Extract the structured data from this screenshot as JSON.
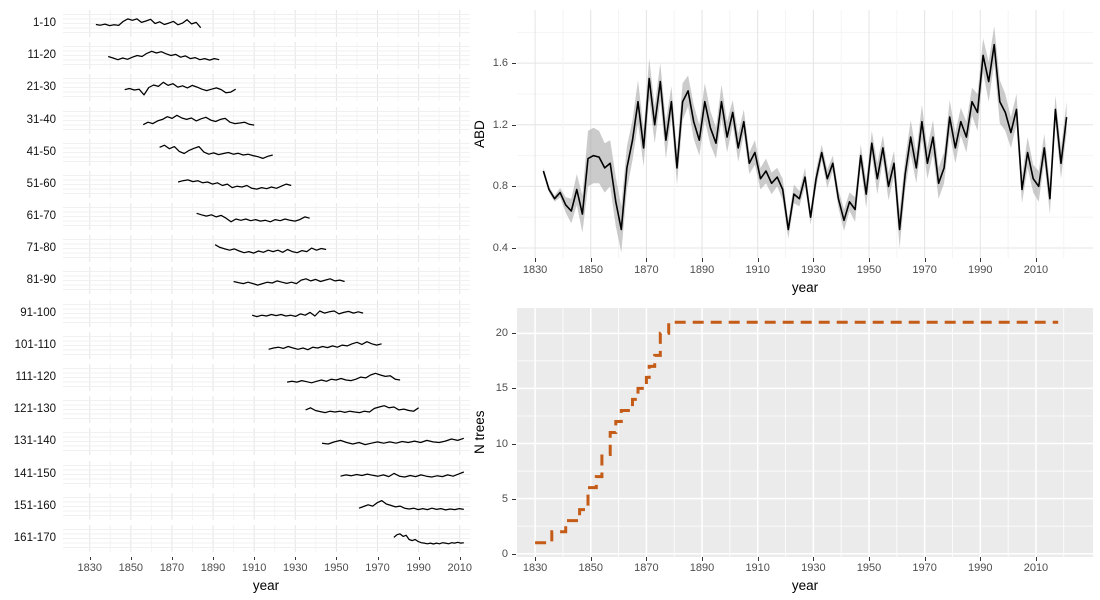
{
  "chart_data": [
    {
      "id": "age_class_facets",
      "type": "line",
      "xlabel": "year",
      "x_ticks": [
        1830,
        1850,
        1870,
        1890,
        1910,
        1930,
        1950,
        1970,
        1990,
        2010
      ],
      "x_domain": [
        1817,
        2015
      ],
      "line_color": "#000000",
      "facets": [
        {
          "label": "1-10",
          "start": 1833,
          "end": 1884,
          "values": [
            0.45,
            0.42,
            0.47,
            0.4,
            0.44,
            0.41,
            0.6,
            0.72,
            0.65,
            0.72,
            0.55,
            0.62,
            0.7,
            0.5,
            0.58,
            0.45,
            0.52,
            0.6,
            0.44,
            0.52,
            0.68,
            0.48,
            0.55,
            0.3
          ]
        },
        {
          "label": "11-20",
          "start": 1839,
          "end": 1893,
          "values": [
            0.45,
            0.38,
            0.3,
            0.38,
            0.32,
            0.42,
            0.5,
            0.45,
            0.6,
            0.7,
            0.62,
            0.68,
            0.58,
            0.5,
            0.55,
            0.42,
            0.48,
            0.35,
            0.4,
            0.3,
            0.35,
            0.28,
            0.35,
            0.3
          ]
        },
        {
          "label": "21-30",
          "start": 1847,
          "end": 1901,
          "values": [
            0.4,
            0.45,
            0.38,
            0.42,
            0.15,
            0.5,
            0.62,
            0.55,
            0.75,
            0.6,
            0.68,
            0.52,
            0.58,
            0.48,
            0.6,
            0.52,
            0.42,
            0.35,
            0.42,
            0.48,
            0.4,
            0.25,
            0.28,
            0.42
          ]
        },
        {
          "label": "31-40",
          "start": 1856,
          "end": 1910,
          "values": [
            0.3,
            0.42,
            0.35,
            0.48,
            0.55,
            0.68,
            0.6,
            0.75,
            0.62,
            0.55,
            0.62,
            0.48,
            0.58,
            0.65,
            0.52,
            0.45,
            0.55,
            0.6,
            0.42,
            0.35,
            0.38,
            0.42,
            0.32,
            0.28
          ]
        },
        {
          "label": "41-50",
          "start": 1864,
          "end": 1919,
          "values": [
            0.75,
            0.85,
            0.68,
            0.78,
            0.55,
            0.45,
            0.6,
            0.7,
            0.78,
            0.52,
            0.42,
            0.48,
            0.4,
            0.45,
            0.5,
            0.42,
            0.46,
            0.38,
            0.42,
            0.35,
            0.3,
            0.22,
            0.32,
            0.38
          ]
        },
        {
          "label": "51-60",
          "start": 1873,
          "end": 1928,
          "values": [
            0.62,
            0.68,
            0.72,
            0.64,
            0.68,
            0.58,
            0.62,
            0.52,
            0.58,
            0.45,
            0.52,
            0.35,
            0.42,
            0.38,
            0.45,
            0.32,
            0.28,
            0.35,
            0.3,
            0.38,
            0.32,
            0.42,
            0.52,
            0.45
          ]
        },
        {
          "label": "61-70",
          "start": 1882,
          "end": 1937,
          "values": [
            0.65,
            0.58,
            0.52,
            0.58,
            0.48,
            0.55,
            0.42,
            0.25,
            0.38,
            0.32,
            0.38,
            0.3,
            0.35,
            0.28,
            0.32,
            0.25,
            0.35,
            0.3,
            0.38,
            0.32,
            0.28,
            0.35,
            0.48,
            0.42
          ]
        },
        {
          "label": "71-80",
          "start": 1891,
          "end": 1945,
          "values": [
            0.68,
            0.55,
            0.48,
            0.42,
            0.48,
            0.38,
            0.3,
            0.35,
            0.28,
            0.38,
            0.32,
            0.42,
            0.35,
            0.42,
            0.32,
            0.45,
            0.35,
            0.3,
            0.4,
            0.35,
            0.52,
            0.42,
            0.5,
            0.45
          ]
        },
        {
          "label": "81-90",
          "start": 1900,
          "end": 1954,
          "values": [
            0.45,
            0.4,
            0.35,
            0.42,
            0.35,
            0.28,
            0.35,
            0.42,
            0.38,
            0.48,
            0.42,
            0.36,
            0.42,
            0.35,
            0.52,
            0.58,
            0.48,
            0.55,
            0.45,
            0.52,
            0.58,
            0.48,
            0.52,
            0.45
          ]
        },
        {
          "label": "91-100",
          "start": 1909,
          "end": 1963,
          "values": [
            0.42,
            0.35,
            0.42,
            0.38,
            0.45,
            0.4,
            0.45,
            0.38,
            0.42,
            0.36,
            0.48,
            0.42,
            0.55,
            0.38,
            0.62,
            0.52,
            0.58,
            0.62,
            0.48,
            0.55,
            0.6,
            0.52,
            0.58,
            0.52
          ]
        },
        {
          "label": "101-110",
          "start": 1917,
          "end": 1972,
          "values": [
            0.32,
            0.38,
            0.42,
            0.36,
            0.45,
            0.38,
            0.32,
            0.38,
            0.3,
            0.42,
            0.38,
            0.45,
            0.4,
            0.48,
            0.42,
            0.52,
            0.48,
            0.58,
            0.65,
            0.55,
            0.68,
            0.58,
            0.52,
            0.58
          ]
        },
        {
          "label": "111-120",
          "start": 1926,
          "end": 1981,
          "values": [
            0.28,
            0.32,
            0.28,
            0.35,
            0.3,
            0.25,
            0.32,
            0.38,
            0.32,
            0.42,
            0.38,
            0.45,
            0.38,
            0.35,
            0.42,
            0.52,
            0.48,
            0.62,
            0.7,
            0.62,
            0.55,
            0.58,
            0.42,
            0.38
          ]
        },
        {
          "label": "121-130",
          "start": 1935,
          "end": 1990,
          "values": [
            0.48,
            0.58,
            0.45,
            0.4,
            0.35,
            0.42,
            0.38,
            0.42,
            0.36,
            0.42,
            0.38,
            0.35,
            0.42,
            0.38,
            0.55,
            0.62,
            0.68,
            0.58,
            0.62,
            0.48,
            0.52,
            0.45,
            0.42,
            0.58
          ]
        },
        {
          "label": "131-140",
          "start": 1943,
          "end": 2012,
          "values": [
            0.42,
            0.38,
            0.48,
            0.55,
            0.45,
            0.38,
            0.45,
            0.35,
            0.42,
            0.48,
            0.42,
            0.48,
            0.42,
            0.5,
            0.45,
            0.52,
            0.45,
            0.55,
            0.48,
            0.45,
            0.52,
            0.62,
            0.55,
            0.65
          ]
        },
        {
          "label": "141-150",
          "start": 1952,
          "end": 2012,
          "values": [
            0.42,
            0.48,
            0.44,
            0.5,
            0.45,
            0.52,
            0.46,
            0.42,
            0.48,
            0.4,
            0.55,
            0.42,
            0.38,
            0.45,
            0.4,
            0.48,
            0.42,
            0.38,
            0.44,
            0.4,
            0.48,
            0.42,
            0.52,
            0.62
          ]
        },
        {
          "label": "151-160",
          "start": 1961,
          "end": 2012,
          "values": [
            0.42,
            0.5,
            0.58,
            0.52,
            0.68,
            0.78,
            0.62,
            0.55,
            0.48,
            0.52,
            0.42,
            0.38,
            0.42,
            0.35,
            0.4,
            0.35,
            0.42,
            0.36,
            0.4,
            0.34,
            0.38,
            0.35,
            0.4,
            0.36
          ]
        },
        {
          "label": "161-170",
          "start": 1978,
          "end": 2012,
          "values": [
            0.55,
            0.68,
            0.72,
            0.6,
            0.65,
            0.45,
            0.4,
            0.45,
            0.35,
            0.3,
            0.28,
            0.25,
            0.28,
            0.24,
            0.28,
            0.25,
            0.3,
            0.28,
            0.25,
            0.3,
            0.28,
            0.32,
            0.28,
            0.3
          ]
        }
      ]
    },
    {
      "id": "abd_chronology",
      "type": "line+ribbon",
      "xlabel": "year",
      "ylabel": "ABD",
      "x_ticks": [
        1830,
        1850,
        1870,
        1890,
        1910,
        1930,
        1950,
        1970,
        1990,
        2010
      ],
      "y_ticks": [
        0.4,
        0.8,
        1.2,
        1.6
      ],
      "y_minor": [
        0.6,
        1.0,
        1.4,
        1.8
      ],
      "x_domain": [
        1823.5,
        2030.5
      ],
      "y_domain": [
        0.335,
        1.945
      ],
      "line_color": "#000000",
      "ribbon_color": "#A8A8A8",
      "series": {
        "start_year": 1833,
        "step": 2,
        "values": [
          0.9,
          0.78,
          0.72,
          0.76,
          0.68,
          0.64,
          0.78,
          0.62,
          0.98,
          1.0,
          0.99,
          0.92,
          0.95,
          0.7,
          0.52,
          0.92,
          1.1,
          1.35,
          1.05,
          1.5,
          1.2,
          1.48,
          1.1,
          1.35,
          0.92,
          1.35,
          1.42,
          1.22,
          1.1,
          1.35,
          1.18,
          1.08,
          1.35,
          1.12,
          1.28,
          1.05,
          1.22,
          0.95,
          1.02,
          0.85,
          0.9,
          0.82,
          0.86,
          0.78,
          0.52,
          0.75,
          0.72,
          0.86,
          0.6,
          0.85,
          1.02,
          0.85,
          0.95,
          0.72,
          0.58,
          0.7,
          0.65,
          1.0,
          0.75,
          1.08,
          0.85,
          1.05,
          0.8,
          0.95,
          0.52,
          0.88,
          1.12,
          0.92,
          1.22,
          0.95,
          1.12,
          0.82,
          0.92,
          1.25,
          1.05,
          1.22,
          1.12,
          1.35,
          1.28,
          1.65,
          1.48,
          1.72,
          1.35,
          1.28,
          1.15,
          1.3,
          0.78,
          1.02,
          0.85,
          0.8,
          1.05,
          0.72,
          1.3,
          0.95,
          1.25
        ],
        "band": [
          0.02,
          0.02,
          0.02,
          0.03,
          0.05,
          0.08,
          0.1,
          0.12,
          0.18,
          0.18,
          0.17,
          0.16,
          0.15,
          0.16,
          0.15,
          0.14,
          0.13,
          0.14,
          0.12,
          0.13,
          0.12,
          0.12,
          0.12,
          0.1,
          0.11,
          0.12,
          0.1,
          0.11,
          0.1,
          0.12,
          0.11,
          0.1,
          0.11,
          0.1,
          0.08,
          0.09,
          0.08,
          0.07,
          0.08,
          0.07,
          0.08,
          0.07,
          0.06,
          0.07,
          0.06,
          0.06,
          0.05,
          0.06,
          0.05,
          0.06,
          0.05,
          0.06,
          0.05,
          0.06,
          0.07,
          0.06,
          0.08,
          0.07,
          0.09,
          0.08,
          0.1,
          0.08,
          0.09,
          0.08,
          0.12,
          0.1,
          0.11,
          0.1,
          0.11,
          0.1,
          0.11,
          0.1,
          0.1,
          0.11,
          0.1,
          0.09,
          0.1,
          0.09,
          0.12,
          0.11,
          0.13,
          0.12,
          0.14,
          0.12,
          0.1,
          0.1,
          0.09,
          0.1,
          0.09,
          0.1,
          0.09,
          0.1,
          0.09,
          0.1,
          0.1
        ]
      }
    },
    {
      "id": "n_trees",
      "type": "step",
      "xlabel": "year",
      "ylabel": "N trees",
      "x_ticks": [
        1830,
        1850,
        1870,
        1890,
        1910,
        1930,
        1950,
        1970,
        1990,
        2010
      ],
      "y_ticks": [
        0,
        5,
        10,
        15,
        20
      ],
      "y_minor": [
        2.5,
        7.5,
        12.5,
        17.5
      ],
      "x_domain": [
        1823.5,
        2030.5
      ],
      "y_domain": [
        -0.3,
        22.3
      ],
      "line_color": "#C45B16",
      "dashed": true,
      "panel_bg": "#EBEBEB",
      "plateau_value": 21,
      "end_year": 2018,
      "steps": [
        [
          1830,
          1
        ],
        [
          1836,
          2
        ],
        [
          1841,
          3
        ],
        [
          1846,
          4
        ],
        [
          1849,
          6
        ],
        [
          1852,
          7
        ],
        [
          1854,
          9
        ],
        [
          1857,
          11
        ],
        [
          1859,
          12
        ],
        [
          1861,
          13
        ],
        [
          1865,
          14
        ],
        [
          1867,
          15
        ],
        [
          1870,
          16
        ],
        [
          1871,
          17
        ],
        [
          1873,
          18
        ],
        [
          1875,
          20
        ],
        [
          1878,
          21
        ]
      ]
    }
  ]
}
